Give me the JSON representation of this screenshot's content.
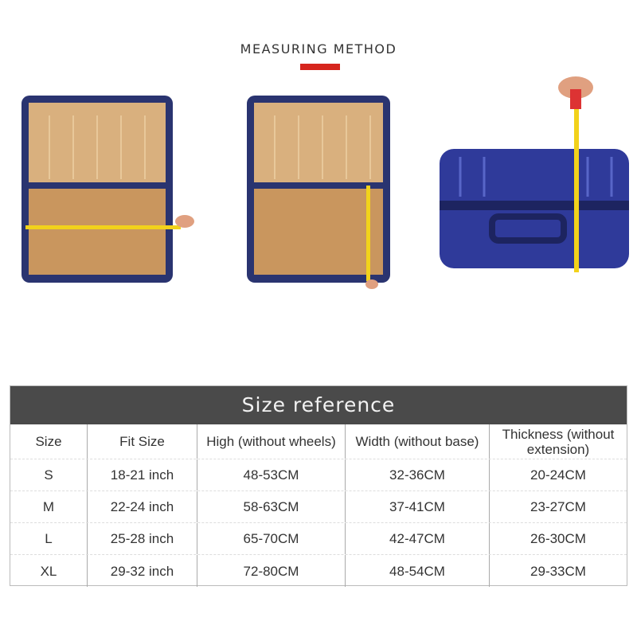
{
  "title": "MEASURING METHOD",
  "accent": "#d6251d",
  "photos": [
    "suitcase-width-measure",
    "suitcase-height-measure",
    "suitcase-thickness-measure"
  ],
  "table": {
    "title": "Size reference",
    "headers": [
      "Size",
      "Fit Size",
      "High (without wheels)",
      "Width (without base)",
      "Thickness (without extension)"
    ],
    "rows": [
      [
        "S",
        "18-21 inch",
        "48-53CM",
        "32-36CM",
        "20-24CM"
      ],
      [
        "M",
        "22-24 inch",
        "58-63CM",
        "37-41CM",
        "23-27CM"
      ],
      [
        "L",
        "25-28 inch",
        "65-70CM",
        "42-47CM",
        "26-30CM"
      ],
      [
        "XL",
        "29-32 inch",
        "72-80CM",
        "48-54CM",
        "29-33CM"
      ]
    ]
  }
}
